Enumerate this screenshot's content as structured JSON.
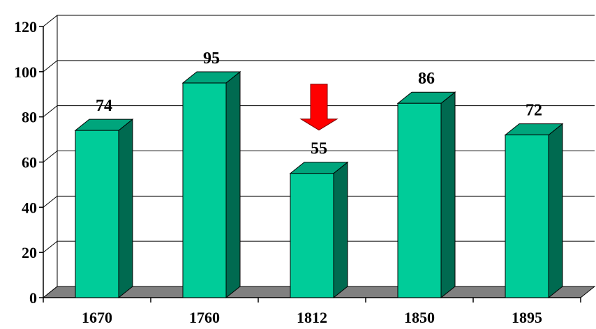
{
  "chart_data": {
    "type": "bar",
    "categories": [
      "1670",
      "1760",
      "1812",
      "1850",
      "1895"
    ],
    "values": [
      74,
      95,
      55,
      86,
      72
    ],
    "data_labels": [
      "74",
      "95",
      "55",
      "86",
      "72"
    ],
    "ylim": [
      0,
      120
    ],
    "y_ticks": [
      0,
      20,
      40,
      60,
      80,
      100,
      120
    ],
    "y_tick_labels": [
      "0",
      "20",
      "40",
      "60",
      "80",
      "100",
      "120"
    ],
    "grid": true,
    "style": "3d-column",
    "colors": {
      "bar_front": "#00cc99",
      "bar_top": "#00a57c",
      "bar_side": "#006a50",
      "floor": "#808080",
      "arrow": "#ff0000"
    },
    "annotations": [
      {
        "type": "arrow",
        "direction": "down",
        "category": "1812"
      }
    ]
  }
}
